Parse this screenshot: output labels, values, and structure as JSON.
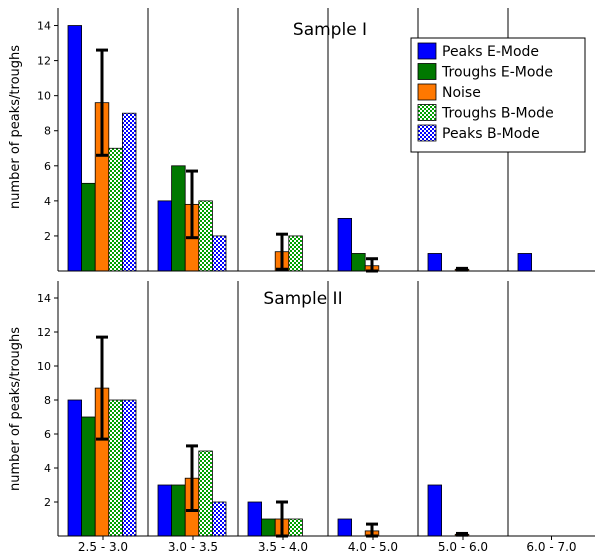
{
  "chart_data": {
    "type": "bar",
    "categories": [
      "2.5 - 3.0",
      "3.0 - 3.5",
      "3.5 - 4.0",
      "4.0 - 5.0",
      "5.0 - 6.0",
      "6.0 - 7.0"
    ],
    "ylabel": "number of peaks/troughs",
    "ylim": [
      0,
      15
    ],
    "yticks": [
      2,
      4,
      6,
      8,
      10,
      12,
      14
    ],
    "grid": false,
    "legend_position": "top-right",
    "series_styles": [
      {
        "name": "Peaks E-Mode",
        "color": "#0000ff",
        "pattern": "solid"
      },
      {
        "name": "Troughs E-Mode",
        "color": "#007800",
        "pattern": "solid"
      },
      {
        "name": "Noise",
        "color": "#ff7800",
        "pattern": "solid"
      },
      {
        "name": "Troughs B-Mode",
        "color": "#00a000",
        "pattern": "checker"
      },
      {
        "name": "Peaks B-Mode",
        "color": "#0000ff",
        "pattern": "checker"
      }
    ],
    "panels": [
      {
        "title": "Sample I",
        "series": [
          {
            "name": "Peaks E-Mode",
            "values": [
              14,
              4,
              0,
              3,
              1,
              1
            ]
          },
          {
            "name": "Troughs E-Mode",
            "values": [
              5,
              6,
              0,
              1,
              0,
              0
            ]
          },
          {
            "name": "Noise",
            "values": [
              9.6,
              3.8,
              1.1,
              0.3,
              0.1,
              0
            ],
            "error": [
              3.0,
              1.9,
              1.0,
              0.4,
              0.05,
              0
            ]
          },
          {
            "name": "Troughs B-Mode",
            "values": [
              7,
              4,
              2,
              0,
              0,
              0
            ]
          },
          {
            "name": "Peaks B-Mode",
            "values": [
              9,
              2,
              0,
              0,
              0,
              0
            ]
          }
        ]
      },
      {
        "title": "Sample II",
        "series": [
          {
            "name": "Peaks E-Mode",
            "values": [
              8,
              3,
              2,
              1,
              3,
              0
            ]
          },
          {
            "name": "Troughs E-Mode",
            "values": [
              7,
              3,
              1,
              0,
              0,
              0
            ]
          },
          {
            "name": "Noise",
            "values": [
              8.7,
              3.4,
              1.0,
              0.3,
              0.1,
              0
            ],
            "error": [
              3.0,
              1.9,
              1.0,
              0.4,
              0.05,
              0
            ]
          },
          {
            "name": "Troughs B-Mode",
            "values": [
              8,
              5,
              1,
              0,
              0,
              0
            ]
          },
          {
            "name": "Peaks B-Mode",
            "values": [
              8,
              2,
              0,
              0,
              0,
              0
            ]
          }
        ]
      }
    ]
  }
}
